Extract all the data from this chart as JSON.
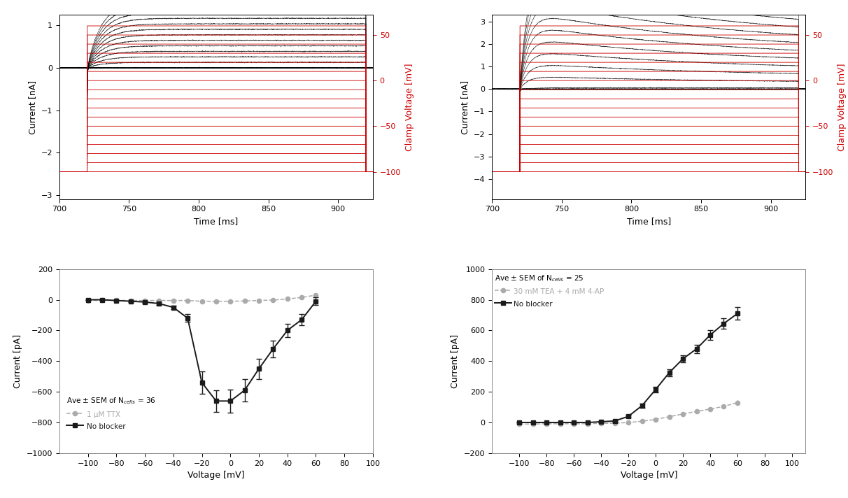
{
  "top_left": {
    "time_pre": 700,
    "time_step_start": 720,
    "time_step_end": 920,
    "time_end": 925,
    "current_ylim": [
      -3.1,
      1.25
    ],
    "current_yticks": [
      -3,
      -2,
      -1,
      0,
      1
    ],
    "voltage_ylim": [
      -130,
      72
    ],
    "voltage_yticks": [
      -100,
      -50,
      0,
      50
    ],
    "voltage_levels": [
      -100,
      -90,
      -80,
      -70,
      -60,
      -50,
      -40,
      -30,
      -20,
      -10,
      0,
      10,
      20,
      30,
      40,
      50,
      60
    ],
    "holding_voltage": -100,
    "xlabel": "Time [ms]",
    "ylabel_left": "Current [nA]",
    "ylabel_right": "Clamp Voltage [mV]",
    "xlim": [
      700,
      925
    ],
    "xticks": [
      700,
      750,
      800,
      850,
      900
    ]
  },
  "top_right": {
    "time_pre": 700,
    "time_step_start": 720,
    "time_step_end": 920,
    "time_end": 925,
    "current_ylim": [
      -4.9,
      3.3
    ],
    "current_yticks": [
      -4,
      -3,
      -2,
      -1,
      0,
      1,
      2,
      3
    ],
    "voltage_ylim": [
      -130,
      72
    ],
    "voltage_yticks": [
      -100,
      -50,
      0,
      50
    ],
    "voltage_levels": [
      -100,
      -90,
      -80,
      -70,
      -60,
      -50,
      -40,
      -30,
      -20,
      -10,
      0,
      10,
      20,
      30,
      40,
      50,
      60
    ],
    "holding_voltage": -100,
    "xlabel": "Time [ms]",
    "ylabel_left": "Current [nA]",
    "ylabel_right": "Clamp Voltage [mV]",
    "xlim": [
      700,
      925
    ],
    "xticks": [
      700,
      750,
      800,
      850,
      900
    ]
  },
  "bottom_left": {
    "voltages": [
      -100,
      -90,
      -80,
      -70,
      -60,
      -50,
      -40,
      -30,
      -20,
      -10,
      0,
      10,
      20,
      30,
      40,
      50,
      60
    ],
    "no_blocker_mean": [
      0,
      0,
      -5,
      -10,
      -15,
      -25,
      -50,
      -120,
      -540,
      -660,
      -660,
      -590,
      -450,
      -320,
      -200,
      -130,
      -10
    ],
    "no_blocker_sem": [
      2,
      2,
      3,
      4,
      5,
      7,
      12,
      25,
      75,
      70,
      75,
      75,
      65,
      55,
      45,
      38,
      25
    ],
    "ttx_mean": [
      -5,
      -4,
      -4,
      -5,
      -5,
      -5,
      -5,
      -5,
      -10,
      -10,
      -10,
      -8,
      -5,
      -2,
      5,
      15,
      30
    ],
    "ttx_sem": [
      1,
      1,
      1,
      1,
      1,
      1,
      1,
      2,
      2,
      3,
      3,
      3,
      4,
      5,
      6,
      7,
      8
    ],
    "ylim": [
      -1000,
      200
    ],
    "yticks": [
      -1000,
      -800,
      -600,
      -400,
      -200,
      0,
      200
    ],
    "xlim": [
      -120,
      100
    ],
    "xticks": [
      -100,
      -80,
      -60,
      -40,
      -20,
      0,
      20,
      40,
      60,
      80,
      100
    ],
    "xlabel": "Voltage [mV]",
    "ylabel": "Current [pA]",
    "legend_text": "Ave ± SEM of N$_{cells}$ = 36",
    "legend_ttx": "1 μM TTX",
    "legend_no_blocker": "No blocker"
  },
  "bottom_right": {
    "voltages": [
      -100,
      -90,
      -80,
      -70,
      -60,
      -50,
      -40,
      -30,
      -20,
      -10,
      0,
      10,
      20,
      30,
      40,
      50,
      60
    ],
    "no_blocker_mean": [
      0,
      0,
      0,
      0,
      0,
      0,
      5,
      10,
      40,
      110,
      215,
      325,
      415,
      480,
      570,
      645,
      710
    ],
    "no_blocker_sem": [
      2,
      2,
      2,
      2,
      2,
      2,
      3,
      5,
      8,
      12,
      18,
      22,
      25,
      28,
      32,
      36,
      42
    ],
    "tea_mean": [
      -10,
      -10,
      -8,
      -8,
      -8,
      -8,
      -5,
      -5,
      0,
      8,
      20,
      38,
      55,
      72,
      88,
      105,
      130
    ],
    "tea_sem": [
      1,
      1,
      1,
      1,
      1,
      1,
      1,
      2,
      2,
      3,
      4,
      5,
      6,
      8,
      10,
      12,
      14
    ],
    "ylim": [
      -200,
      1000
    ],
    "yticks": [
      -200,
      0,
      200,
      400,
      600,
      800,
      1000
    ],
    "xlim": [
      -120,
      110
    ],
    "xticks": [
      -100,
      -80,
      -60,
      -40,
      -20,
      0,
      20,
      40,
      60,
      80,
      100
    ],
    "xlabel": "Voltage [mV]",
    "ylabel": "Current [pA]",
    "legend_text": "Ave ± SEM of N$_{cells}$ = 25",
    "legend_tea": "30 mM TEA + 4 mM 4-AP",
    "legend_no_blocker": "No blocker"
  },
  "colors": {
    "black": "#1a1a1a",
    "red": "#cc0000",
    "gray": "#aaaaaa",
    "spine": "#888888"
  }
}
